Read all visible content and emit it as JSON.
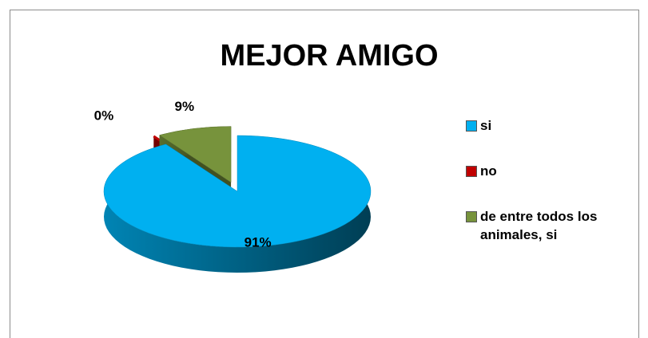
{
  "chart_data": {
    "type": "pie",
    "title": "MEJOR AMIGO",
    "categories": [
      "si",
      "no",
      "de entre todos los animales, si"
    ],
    "values": [
      91,
      0,
      9
    ],
    "value_labels": [
      "91%",
      "0%",
      "9%"
    ],
    "colors": [
      "#00b0f0",
      "#c00000",
      "#77933c"
    ],
    "legend": "right"
  }
}
